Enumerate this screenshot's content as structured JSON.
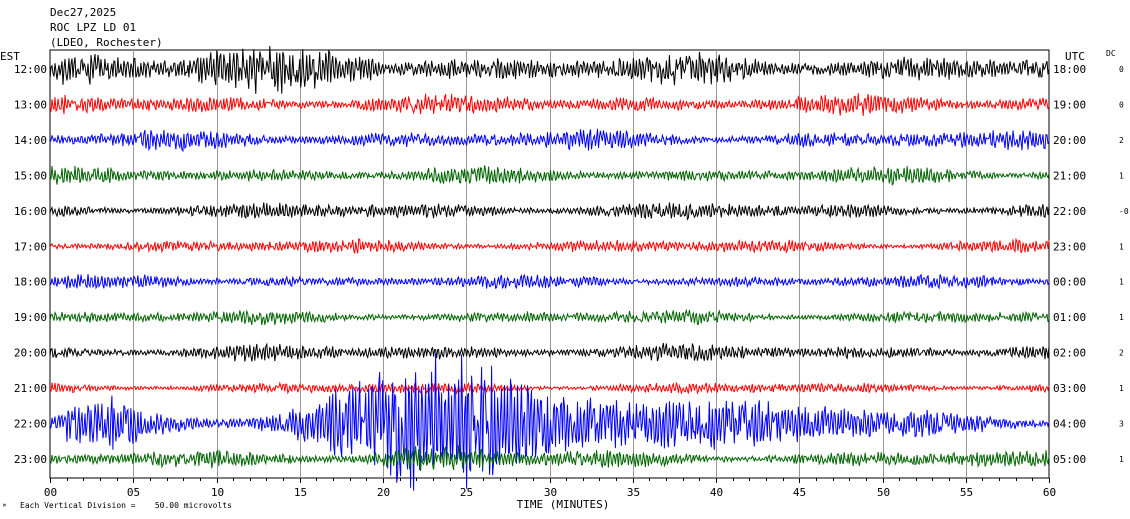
{
  "header": {
    "date": "Dec27,2025",
    "station": "ROC LPZ LD 01",
    "network": "(LDEO, Rochester)"
  },
  "chart_data": {
    "type": "line",
    "title": "Dec27,2025",
    "xlabel": "TIME (MINUTES)",
    "left_axis_label": "EST",
    "right_axis_label": "UTC",
    "dc_label": "DC",
    "scale_note": "Each Vertical Division =    50.00 microvolts",
    "xlim": [
      0,
      60
    ],
    "x_ticks": [
      "00",
      "05",
      "10",
      "15",
      "20",
      "25",
      "30",
      "35",
      "40",
      "45",
      "50",
      "55",
      "60"
    ],
    "grid": true,
    "colors": [
      "#000000",
      "#ff0000",
      "#0000ff",
      "#006400"
    ],
    "rows": [
      {
        "est": "12:00",
        "utc": "18:00",
        "dc": "0",
        "color": "#000000",
        "amp": 11
      },
      {
        "est": "13:00",
        "utc": "19:00",
        "dc": "0",
        "color": "#ff0000",
        "amp": 7
      },
      {
        "est": "14:00",
        "utc": "20:00",
        "dc": "2",
        "color": "#0000ff",
        "amp": 7
      },
      {
        "est": "15:00",
        "utc": "21:00",
        "dc": "1",
        "color": "#006400",
        "amp": 6
      },
      {
        "est": "16:00",
        "utc": "22:00",
        "dc": "-0",
        "color": "#000000",
        "amp": 6
      },
      {
        "est": "17:00",
        "utc": "23:00",
        "dc": "1",
        "color": "#ff0000",
        "amp": 5
      },
      {
        "est": "18:00",
        "utc": "00:00",
        "dc": "1",
        "color": "#0000ff",
        "amp": 5
      },
      {
        "est": "19:00",
        "utc": "01:00",
        "dc": "1",
        "color": "#006400",
        "amp": 5
      },
      {
        "est": "20:00",
        "utc": "02:00",
        "dc": "2",
        "color": "#000000",
        "amp": 6
      },
      {
        "est": "21:00",
        "utc": "03:00",
        "dc": "1",
        "color": "#ff0000",
        "amp": 4
      },
      {
        "est": "22:00",
        "utc": "04:00",
        "dc": "3",
        "color": "#0000ff",
        "amp": 8,
        "event": true
      },
      {
        "est": "23:00",
        "utc": "05:00",
        "dc": "1",
        "color": "#006400",
        "amp": 6
      }
    ]
  }
}
